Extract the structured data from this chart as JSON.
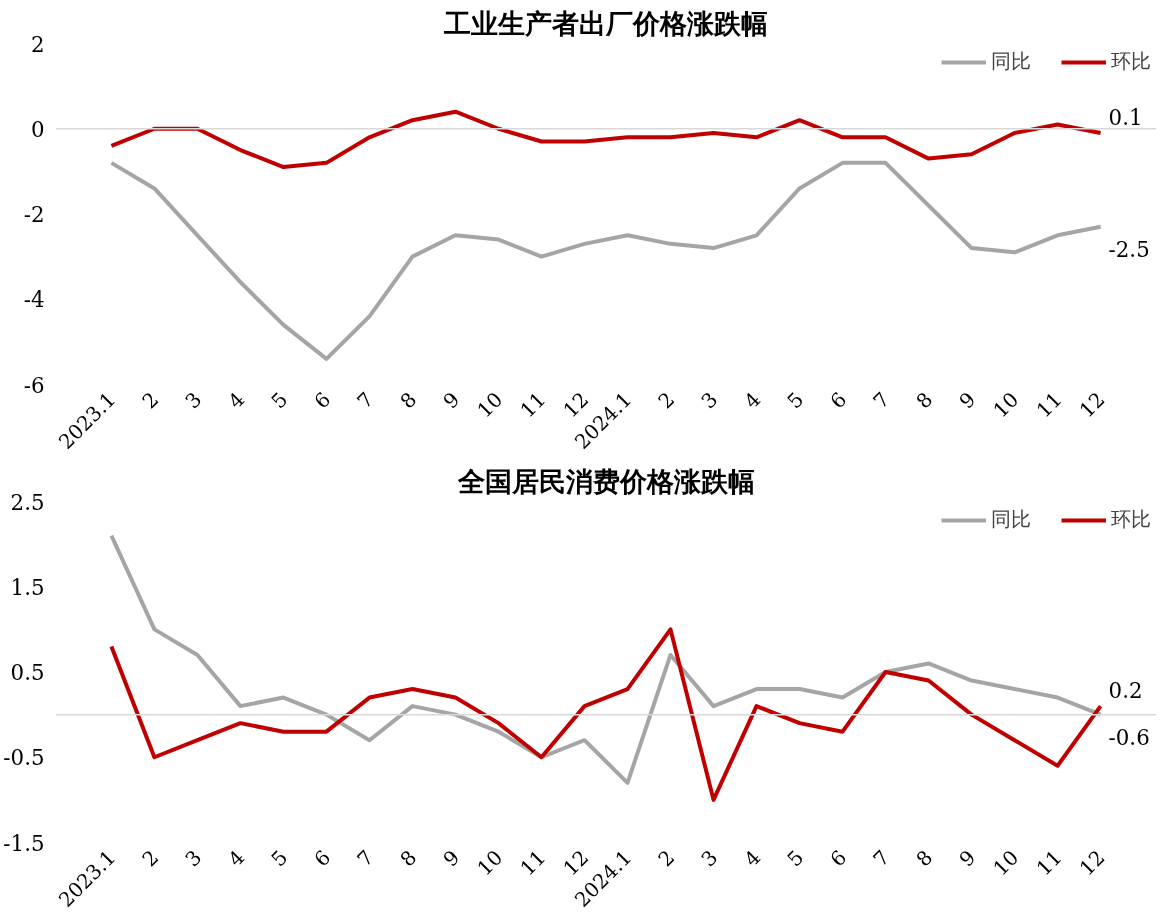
{
  "chart_data": [
    {
      "type": "line",
      "title": "工业生产者出厂价格涨跌幅",
      "categories": [
        "2023.1",
        "2",
        "3",
        "4",
        "5",
        "6",
        "7",
        "8",
        "9",
        "10",
        "11",
        "12",
        "2024.1",
        "2",
        "3",
        "4",
        "5",
        "6",
        "7",
        "8",
        "9",
        "10",
        "11",
        "12"
      ],
      "series": [
        {
          "name": "同比",
          "color": "#a5a5a5",
          "values": [
            -0.8,
            -1.4,
            -2.5,
            -3.6,
            -4.6,
            -5.4,
            -4.4,
            -3.0,
            -2.5,
            -2.6,
            -3.0,
            -2.7,
            -2.5,
            -2.7,
            -2.8,
            -2.5,
            -1.4,
            -0.8,
            -0.8,
            -1.8,
            -2.8,
            -2.9,
            -2.5,
            -2.3
          ]
        },
        {
          "name": "环比",
          "color": "#c00000",
          "values": [
            -0.4,
            0.0,
            0.0,
            -0.5,
            -0.9,
            -0.8,
            -0.2,
            0.2,
            0.4,
            0.0,
            -0.3,
            -0.3,
            -0.2,
            -0.2,
            -0.1,
            -0.2,
            0.2,
            -0.2,
            -0.2,
            -0.7,
            -0.6,
            -0.1,
            0.1,
            -0.1
          ]
        }
      ],
      "annotations": [
        "0.1",
        "-2.5"
      ],
      "ylim": [
        -6,
        2
      ],
      "yticks": [
        -6,
        -4,
        -2,
        0,
        2
      ],
      "legend": "top right",
      "marker": "none",
      "line_style": "solid"
    },
    {
      "type": "line",
      "title": "全国居民消费价格涨跌幅",
      "categories": [
        "2023.1",
        "2",
        "3",
        "4",
        "5",
        "6",
        "7",
        "8",
        "9",
        "10",
        "11",
        "12",
        "2024.1",
        "2",
        "3",
        "4",
        "5",
        "6",
        "7",
        "8",
        "9",
        "10",
        "11",
        "12"
      ],
      "series": [
        {
          "name": "同比",
          "color": "#a5a5a5",
          "values": [
            2.1,
            1.0,
            0.7,
            0.1,
            0.2,
            0.0,
            -0.3,
            0.1,
            0.0,
            -0.2,
            -0.5,
            -0.3,
            -0.8,
            0.7,
            0.1,
            0.3,
            0.3,
            0.2,
            0.5,
            0.6,
            0.4,
            0.3,
            0.2,
            0.0
          ]
        },
        {
          "name": "环比",
          "color": "#c00000",
          "values": [
            0.8,
            -0.5,
            -0.3,
            -0.1,
            -0.2,
            -0.2,
            0.2,
            0.3,
            0.2,
            -0.1,
            -0.5,
            0.1,
            0.3,
            1.0,
            -1.0,
            0.1,
            -0.1,
            -0.2,
            0.5,
            0.4,
            0.0,
            -0.3,
            -0.6,
            0.1
          ]
        }
      ],
      "annotations": [
        "0.2",
        "-0.6"
      ],
      "ylim": [
        -1.5,
        2.5
      ],
      "yticks": [
        -1.5,
        -0.5,
        0.5,
        1.5,
        2.5
      ],
      "legend": "top right",
      "marker": "none",
      "line_style": "solid"
    }
  ]
}
